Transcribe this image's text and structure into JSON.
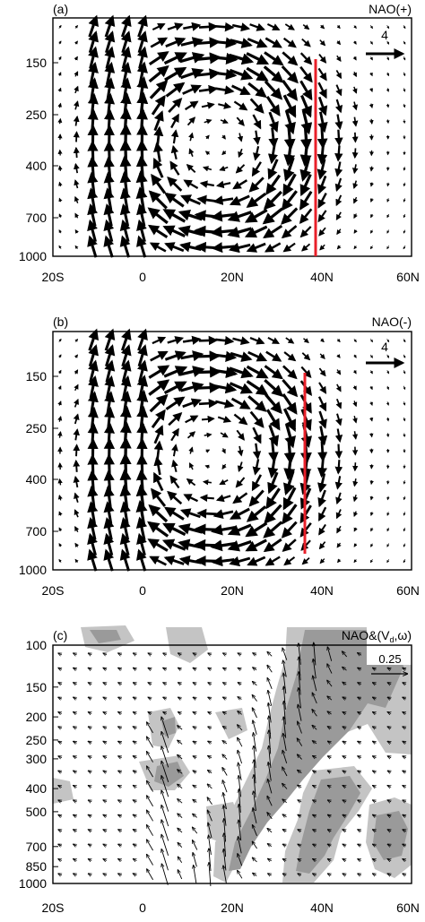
{
  "panels": [
    {
      "id": "a",
      "label": "(a)",
      "title": "NAO(+)",
      "ref_vector_label": "4",
      "y_ticks": [
        "150",
        "250",
        "400",
        "700",
        "1000"
      ],
      "x_ticks": [
        "20S",
        "0",
        "20N",
        "40N",
        "60N"
      ],
      "red_line": true
    },
    {
      "id": "b",
      "label": "(b)",
      "title": "NAO(-)",
      "ref_vector_label": "4",
      "y_ticks": [
        "150",
        "250",
        "400",
        "700",
        "1000"
      ],
      "x_ticks": [
        "20S",
        "0",
        "20N",
        "40N",
        "60N"
      ],
      "red_line": true
    },
    {
      "id": "c",
      "label": "(c)",
      "title": "NAO&(V",
      "title_sub": "d",
      "title_tail": ",ω)",
      "ref_vector_label": "0.25",
      "y_ticks": [
        "100",
        "150",
        "200",
        "250",
        "300",
        "400",
        "500",
        "700",
        "850",
        "1000"
      ],
      "x_ticks": [
        "20S",
        "0",
        "20N",
        "40N",
        "60N"
      ],
      "red_line": false
    }
  ],
  "chart_data": [
    {
      "type": "vector",
      "panel": "(a)",
      "title": "NAO(+)",
      "x_range": [
        -20,
        60
      ],
      "y_range_hPa": [
        1000,
        100
      ],
      "y_scale": "log",
      "reference_vector": 4,
      "circulation": [
        {
          "center_lat": 12,
          "center_p": 400,
          "sense": "clockwise"
        }
      ],
      "strong_upward_lat": [
        -8,
        0
      ],
      "marked_lat": 39,
      "marked_p_range": [
        1000,
        150
      ],
      "marker_color": "#e8202a"
    },
    {
      "type": "vector",
      "panel": "(b)",
      "title": "NAO(-)",
      "x_range": [
        -20,
        60
      ],
      "y_range_hPa": [
        1000,
        100
      ],
      "y_scale": "log",
      "reference_vector": 4,
      "circulation": [
        {
          "center_lat": 12,
          "center_p": 400,
          "sense": "clockwise"
        }
      ],
      "strong_upward_lat": [
        -8,
        0
      ],
      "marked_lat": 36,
      "marked_p_range": [
        1000,
        150
      ],
      "marker_color": "#e8202a"
    },
    {
      "type": "vector",
      "panel": "(c)",
      "title": "NAO&(Vd,ω)",
      "x_range": [
        -20,
        60
      ],
      "y_range_hPa": [
        1000,
        100
      ],
      "y_scale": "log",
      "reference_vector": 0.25,
      "shading": "significance",
      "shading_colors": [
        "#c4c4c4",
        "#9a9a9a"
      ]
    }
  ],
  "colors": {
    "axis": "#000000",
    "vector": "#000000",
    "marker": "#e8202a",
    "shade_light": "#c4c4c4",
    "shade_dark": "#9a9a9a"
  }
}
